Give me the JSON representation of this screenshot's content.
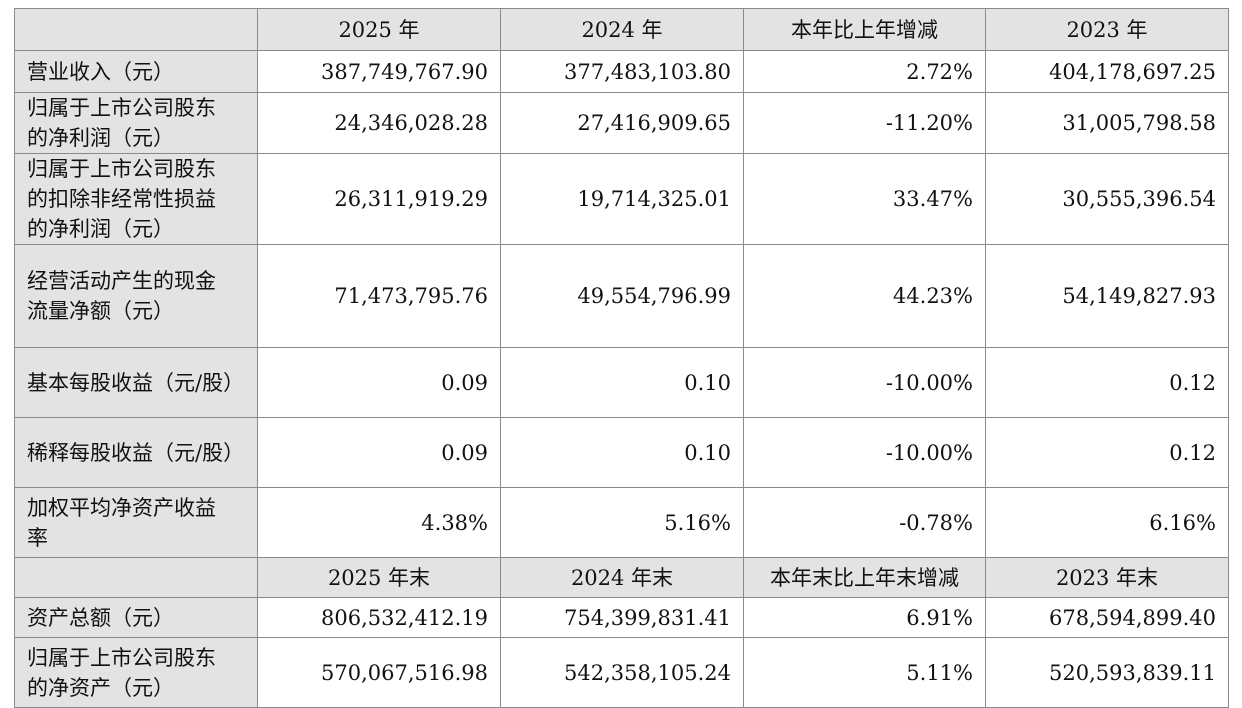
{
  "table": {
    "header": [
      "2025 年",
      "2024 年",
      "本年比上年增减",
      "2023 年"
    ],
    "rows": [
      [
        "营业收入（元）",
        "387,749,767.90",
        "377,483,103.80",
        "2.72%",
        "404,178,697.25"
      ],
      [
        "归属于上市公司股东的净利润（元）",
        "24,346,028.28",
        "27,416,909.65",
        "-11.20%",
        "31,005,798.58"
      ],
      [
        "归属于上市公司股东的扣除非经常性损益的净利润（元）",
        "26,311,919.29",
        "19,714,325.01",
        "33.47%",
        "30,555,396.54"
      ],
      [
        "经营活动产生的现金流量净额（元）",
        "71,473,795.76",
        "49,554,796.99",
        "44.23%",
        "54,149,827.93"
      ],
      [
        "基本每股收益（元/股）",
        "0.09",
        "0.10",
        "-10.00%",
        "0.12"
      ],
      [
        "稀释每股收益（元/股）",
        "0.09",
        "0.10",
        "-10.00%",
        "0.12"
      ],
      [
        "加权平均净资产收益率",
        "4.38%",
        "5.16%",
        "-0.78%",
        "6.16%"
      ]
    ],
    "header2": [
      "2025 年末",
      "2024 年末",
      "本年末比上年末增减",
      "2023 年末"
    ],
    "rows2": [
      [
        "资产总额（元）",
        "806,532,412.19",
        "754,399,831.41",
        "6.91%",
        "678,594,899.40"
      ],
      [
        "归属于上市公司股东的净资产（元）",
        "570,067,516.98",
        "542,358,105.24",
        "5.11%",
        "520,593,839.11"
      ]
    ]
  }
}
